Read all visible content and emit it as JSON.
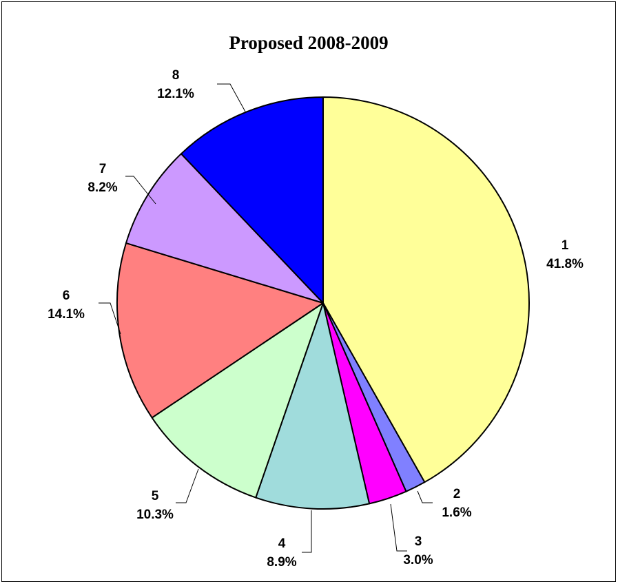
{
  "chart_data": {
    "type": "pie",
    "title": "Proposed 2008-2009",
    "categories": [
      "1",
      "2",
      "3",
      "4",
      "5",
      "6",
      "7",
      "8"
    ],
    "values": [
      41.8,
      1.6,
      3.0,
      8.9,
      10.3,
      14.1,
      8.2,
      12.1
    ],
    "value_labels": [
      "41.8%",
      "1.6%",
      "3.0%",
      "8.9%",
      "10.3%",
      "14.1%",
      "8.2%",
      "12.1%"
    ],
    "colors": [
      "#FFFF99",
      "#8080FF",
      "#FF00FF",
      "#A0DCDC",
      "#CCFFCC",
      "#FF8080",
      "#CC99FF",
      "#0000FF"
    ],
    "start_angle": "12 o'clock",
    "direction": "clockwise",
    "legend": "none"
  }
}
